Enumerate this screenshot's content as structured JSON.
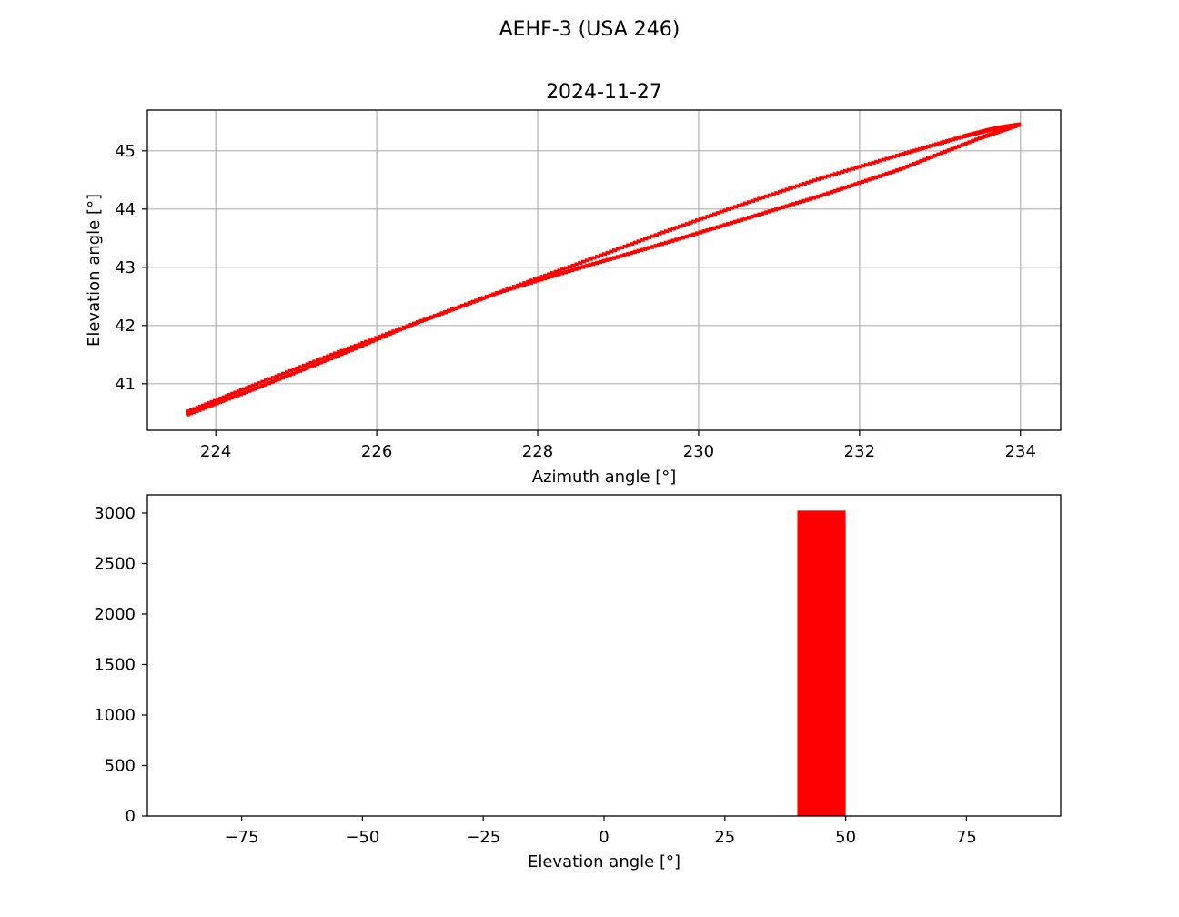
{
  "figure": {
    "suptitle": "AEHF-3 (USA 246)"
  },
  "colors": {
    "series": "#ff0000",
    "grid": "#b0b0b0",
    "axes": "#000000"
  },
  "chart_data": [
    {
      "type": "scatter",
      "title": "2024-11-27",
      "xlabel": "Azimuth angle [°]",
      "ylabel": "Elevation angle [°]",
      "xlim": [
        223.15,
        234.5
      ],
      "ylim": [
        40.2,
        45.7
      ],
      "xticks": [
        224,
        226,
        228,
        230,
        232,
        234
      ],
      "yticks": [
        41,
        42,
        43,
        44,
        45
      ],
      "grid": true,
      "trace": {
        "description_free": true,
        "upper_branch": [
          [
            223.65,
            40.52
          ],
          [
            224.5,
            40.99
          ],
          [
            225.5,
            41.53
          ],
          [
            226.5,
            42.05
          ],
          [
            227.5,
            42.56
          ],
          [
            228.5,
            43.06
          ],
          [
            229.5,
            43.57
          ],
          [
            230.5,
            44.06
          ],
          [
            231.5,
            44.52
          ],
          [
            232.5,
            44.93
          ],
          [
            233.3,
            45.25
          ],
          [
            233.7,
            45.39
          ],
          [
            233.99,
            45.45
          ]
        ],
        "lower_branch": [
          [
            233.99,
            45.45
          ],
          [
            233.5,
            45.22
          ],
          [
            232.5,
            44.68
          ],
          [
            231.5,
            44.22
          ],
          [
            230.5,
            43.8
          ],
          [
            229.5,
            43.38
          ],
          [
            228.5,
            42.98
          ],
          [
            227.5,
            42.56
          ],
          [
            226.5,
            42.05
          ],
          [
            225.5,
            41.47
          ],
          [
            224.5,
            40.92
          ],
          [
            223.65,
            40.47
          ]
        ]
      }
    },
    {
      "type": "bar",
      "title": "",
      "xlabel": "Elevation angle [°]",
      "ylabel": "",
      "xlim": [
        -94.5,
        94.5
      ],
      "ylim": [
        0,
        3180
      ],
      "xticks": [
        -75,
        -50,
        -25,
        0,
        25,
        50,
        75
      ],
      "xtick_labels": [
        "−75",
        "−50",
        "−25",
        "0",
        "25",
        "50",
        "75"
      ],
      "yticks": [
        0,
        500,
        1000,
        1500,
        2000,
        2500,
        3000
      ],
      "grid": false,
      "bins": [
        {
          "x0": 40,
          "x1": 50,
          "count": 3024
        }
      ]
    }
  ]
}
